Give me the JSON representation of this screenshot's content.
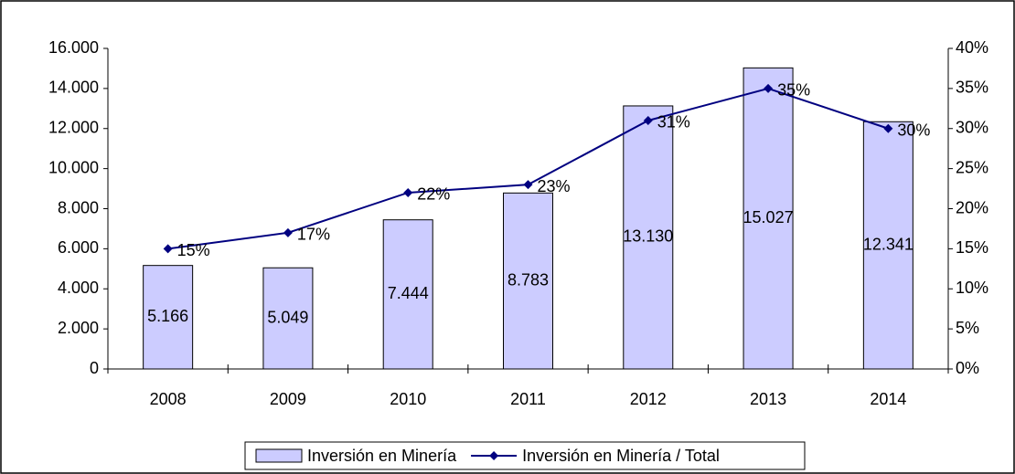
{
  "chart_data": {
    "type": "bar",
    "categories": [
      "2008",
      "2009",
      "2010",
      "2011",
      "2012",
      "2013",
      "2014"
    ],
    "series": [
      {
        "name": "Inversión en Minería",
        "type": "bar",
        "color": "#ccccff",
        "values": [
          5166,
          5049,
          7444,
          8783,
          13130,
          15027,
          12341
        ],
        "value_labels": [
          "5.166",
          "5.049",
          "7.444",
          "8.783",
          "13.130",
          "15.027",
          "12.341"
        ]
      },
      {
        "name": "Inversión en Minería / Total",
        "type": "line",
        "axis": "y2",
        "color": "#000080",
        "values": [
          15,
          17,
          22,
          23,
          31,
          35,
          30
        ],
        "value_labels": [
          "15%",
          "17%",
          "22%",
          "23%",
          "31%",
          "35%",
          "30%"
        ]
      }
    ],
    "ylim": [
      0,
      16000
    ],
    "yticks": [
      0,
      {
        "value": 2000,
        "label": "2.000"
      },
      {
        "value": 4000,
        "label": "4.000"
      },
      {
        "value": 6000,
        "label": "6.000"
      },
      {
        "value": 8000,
        "label": "8.000"
      },
      {
        "value": 10000,
        "label": "10.000"
      },
      {
        "value": 12000,
        "label": "12.000"
      },
      {
        "value": 14000,
        "label": "14.000"
      },
      {
        "value": 16000,
        "label": "16.000"
      }
    ],
    "y2lim": [
      0,
      40
    ],
    "y2ticks": [
      {
        "value": 0,
        "label": "0%"
      },
      {
        "value": 5,
        "label": "5%"
      },
      {
        "value": 10,
        "label": "10%"
      },
      {
        "value": 15,
        "label": "15%"
      },
      {
        "value": 20,
        "label": "20%"
      },
      {
        "value": 25,
        "label": "25%"
      },
      {
        "value": 30,
        "label": "30%"
      },
      {
        "value": 35,
        "label": "35%"
      },
      {
        "value": 40,
        "label": "40%"
      }
    ],
    "legend": "bottom"
  }
}
